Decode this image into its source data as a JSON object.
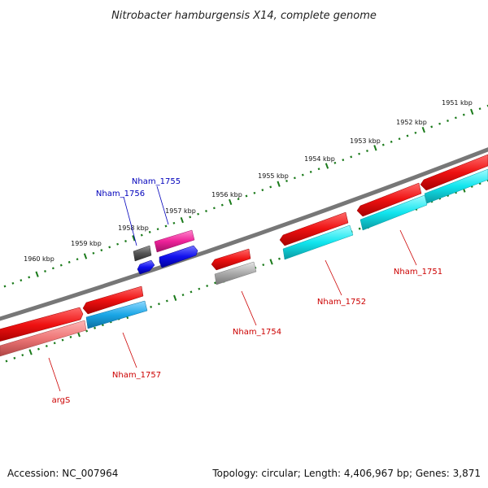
{
  "title": "Nitrobacter hamburgensis X14, complete genome",
  "footer": {
    "accession": "Accession: NC_007964",
    "summary": "Topology: circular; Length: 4,406,967 bp; Genes: 3,871"
  },
  "ruler_labels": [
    "1951 kbp",
    "1952 kbp",
    "1953 kbp",
    "1954 kbp",
    "1955 kbp",
    "1956 kbp",
    "1957 kbp",
    "1958 kbp",
    "1959 kbp",
    "1960 kbp"
  ],
  "gene_labels": {
    "nham_1751": "Nham_1751",
    "nham_1752": "Nham_1752",
    "nham_1754": "Nham_1754",
    "nham_1755": "Nham_1755",
    "nham_1756": "Nham_1756",
    "nham_1757": "Nham_1757",
    "args": "argS"
  },
  "colors": {
    "backbone": "#777777",
    "ruler_tick": "#1a7a1a",
    "gene_red": "#ee1111",
    "gene_cyan": "#11e5ee",
    "gene_blue_cyan": "#1aa6e6",
    "gene_pink": "#ee2299",
    "gene_blue": "#1111ee",
    "gene_gray": "#aaaaaa",
    "gene_dark_gray": "#555555",
    "gene_salmon": "#ee7777",
    "label_red": "#cc0000",
    "label_blue": "#0000bb"
  }
}
